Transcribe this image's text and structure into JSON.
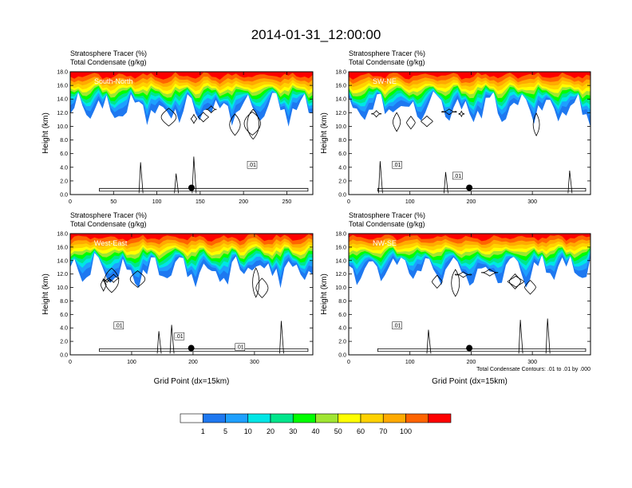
{
  "title": "2014-01-31_12:00:00",
  "colors": {
    "levels": [
      "#ffffff",
      "#1e78f0",
      "#1ea0ff",
      "#00e6e6",
      "#00e68c",
      "#00ff00",
      "#a0e632",
      "#ffff00",
      "#ffd200",
      "#ffaa00",
      "#ff6400",
      "#ff0000"
    ]
  },
  "chart_data": [
    {
      "type": "heatmap",
      "left_title_1": "Stratosphere Tracer   (%)",
      "left_title_2": "Total Condensate   (g/kg)",
      "label": "South-North",
      "ylabel": "Height (km)",
      "xlabel": "",
      "ylim": [
        0,
        18
      ],
      "xlim": [
        0,
        280
      ],
      "xticks": [
        0,
        50,
        100,
        150,
        200,
        250
      ],
      "yticks": [
        "0.0",
        "2.0",
        "4.0",
        "6.0",
        "8.0",
        "10.0",
        "12.0",
        "14.0",
        "16.0",
        "18.0"
      ],
      "marker": {
        "x": 140,
        "y": 1.0
      },
      "contour_labels": [
        ".01"
      ]
    },
    {
      "type": "heatmap",
      "left_title_1": "Stratosphere Tracer   (%)",
      "left_title_2": "Total Condensate   (g/kg)",
      "label": "SW-NE",
      "ylabel": "Height (km)",
      "xlabel": "",
      "ylim": [
        0,
        18
      ],
      "xlim": [
        0,
        395
      ],
      "xticks": [
        0,
        100,
        200,
        300
      ],
      "yticks": [
        "0.0",
        "2.0",
        "4.0",
        "6.0",
        "8.0",
        "10.0",
        "12.0",
        "14.0",
        "16.0",
        "18.0"
      ],
      "marker": {
        "x": 197,
        "y": 1.0
      },
      "contour_labels": [
        ".01",
        ".01"
      ]
    },
    {
      "type": "heatmap",
      "left_title_1": "Stratosphere Tracer   (%)",
      "left_title_2": "Total Condensate   (g/kg)",
      "label": "West-East",
      "ylabel": "Height (km)",
      "xlabel": "Grid Point (dx=15km)",
      "ylim": [
        0,
        18
      ],
      "xlim": [
        0,
        395
      ],
      "xticks": [
        0,
        100,
        200,
        300
      ],
      "yticks": [
        "0.0",
        "2.0",
        "4.0",
        "6.0",
        "8.0",
        "10.0",
        "12.0",
        "14.0",
        "16.0",
        "18.0"
      ],
      "marker": {
        "x": 197,
        "y": 1.0
      },
      "contour_labels": [
        ".01",
        ".01",
        ".01"
      ]
    },
    {
      "type": "heatmap",
      "left_title_1": "Stratosphere Tracer   (%)",
      "left_title_2": "Total Condensate   (g/kg)",
      "label": "NW-SE",
      "ylabel": "Height (km)",
      "xlabel": "Grid Point (dx=15km)",
      "ylim": [
        0,
        18
      ],
      "xlim": [
        0,
        395
      ],
      "xticks": [
        0,
        100,
        200,
        300
      ],
      "yticks": [
        "0.0",
        "2.0",
        "4.0",
        "6.0",
        "8.0",
        "10.0",
        "12.0",
        "14.0",
        "16.0",
        "18.0"
      ],
      "marker": {
        "x": 197,
        "y": 1.0
      },
      "contour_labels": [
        ".01"
      ],
      "note": "Total Condensate Contours: .01 to .01 by .000"
    }
  ],
  "colorbar": {
    "labels": [
      "1",
      "5",
      "10",
      "20",
      "30",
      "40",
      "50",
      "60",
      "70",
      "100"
    ]
  }
}
